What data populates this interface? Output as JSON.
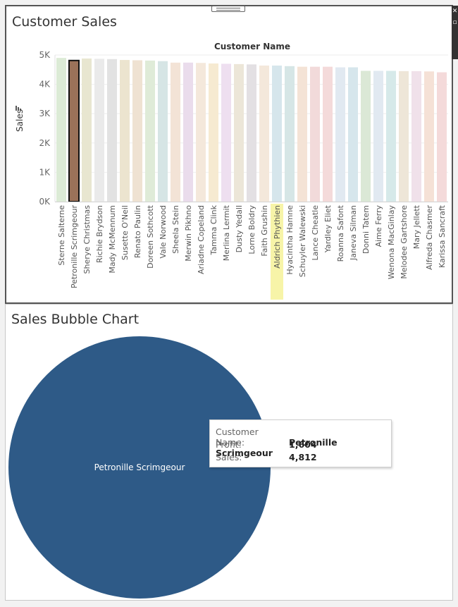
{
  "top_panel": {
    "title": "Customer Sales"
  },
  "bottom_panel": {
    "title": "Sales Bubble Chart"
  },
  "chart_data": [
    {
      "type": "bar",
      "title": "",
      "column_header": "Customer Name",
      "ylabel": "Sales",
      "ylim": [
        0,
        5000
      ],
      "yticks": [
        "0K",
        "1K",
        "2K",
        "3K",
        "4K",
        "5K"
      ],
      "grid": true,
      "categories": [
        "Sterne Salterne",
        "Petronille Scrimgeour",
        "Sherye Christmas",
        "Richie Brydson",
        "Mady McMennum",
        "Susette O'Neil",
        "Renato Paulin",
        "Doreen Sothcott",
        "Vale Norwood",
        "Sheela Stein",
        "Merwin Pikhno",
        "Ariadne Copeland",
        "Tamma Clink",
        "Merlina Lermit",
        "Dusty Yedall",
        "Lorne Boldry",
        "Faith Grushin",
        "Aldrich Phythien",
        "Hyacintha Hamne",
        "Schuyler Walewski",
        "Lance Cheatle",
        "Yardley Eliet",
        "Roanna Safont",
        "Janeva Silman",
        "Donni Tatem",
        "Aime Ferry",
        "Wenona MacGinlay",
        "Melodee Gartshore",
        "Mary Jellett",
        "Alfreda Chasmer",
        "Karissa Sancraft"
      ],
      "values": [
        4900,
        4812,
        4880,
        4870,
        4860,
        4830,
        4820,
        4810,
        4790,
        4740,
        4740,
        4730,
        4710,
        4700,
        4690,
        4680,
        4640,
        4640,
        4620,
        4600,
        4600,
        4600,
        4580,
        4580,
        4460,
        4460,
        4460,
        4450,
        4450,
        4440,
        4410
      ],
      "colors": [
        "#dcebd6",
        "#9b7259",
        "#e8e6d0",
        "#eaeaea",
        "#e2e2e2",
        "#ece4cf",
        "#efe2d2",
        "#dfebd8",
        "#d6e5e5",
        "#f3e3d6",
        "#eadcec",
        "#f4e8db",
        "#f6ead1",
        "#eedff0",
        "#ece6d8",
        "#e3e0e3",
        "#f4e8db",
        "#d6e6ec",
        "#d6e6e6",
        "#f4e3d6",
        "#f2dada",
        "#f4dada",
        "#e1e9f1",
        "#d6e6ec",
        "#dbe8d6",
        "#e1e9f1",
        "#d6e9e9",
        "#eee6d8",
        "#f0e1ea",
        "#f5e1d6",
        "#f4dada"
      ],
      "selected": "Petronille Scrimgeour",
      "highlighted_label": "Aldrich Phythien"
    },
    {
      "type": "scatter",
      "title": "",
      "chart_subtype": "bubble",
      "bubbles": [
        {
          "label": "Petronille Scrimgeour",
          "profit": 1604,
          "sales": 4812,
          "color": "#2e5a87"
        }
      ]
    }
  ],
  "tooltip": {
    "rows": [
      {
        "key": "Customer Name:",
        "value": "Petronille Scrimgeour"
      },
      {
        "key": "Profit:",
        "value": "1,604"
      },
      {
        "key": "Sales:",
        "value": "4,812"
      }
    ]
  },
  "icons": [
    "drag-handle-icon",
    "sort-icon",
    "close-icon",
    "window-icon"
  ]
}
